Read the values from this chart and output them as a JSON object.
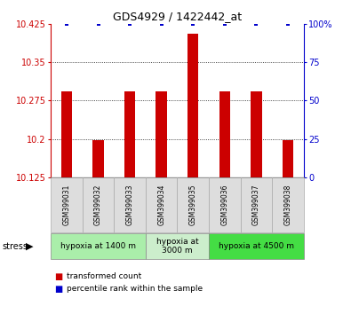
{
  "title": "GDS4929 / 1422442_at",
  "samples": [
    "GSM399031",
    "GSM399032",
    "GSM399033",
    "GSM399034",
    "GSM399035",
    "GSM399036",
    "GSM399037",
    "GSM399038"
  ],
  "bar_values": [
    10.293,
    10.198,
    10.293,
    10.293,
    10.405,
    10.293,
    10.293,
    10.198
  ],
  "percentile_values": [
    100,
    100,
    100,
    100,
    100,
    100,
    100,
    100
  ],
  "bar_base": 10.125,
  "ylim_left": [
    10.125,
    10.425
  ],
  "ylim_right": [
    0,
    100
  ],
  "yticks_left": [
    10.125,
    10.2,
    10.275,
    10.35,
    10.425
  ],
  "yticks_right": [
    0,
    25,
    50,
    75,
    100
  ],
  "ytick_labels_left": [
    "10.125",
    "10.2",
    "10.275",
    "10.35",
    "10.425"
  ],
  "ytick_labels_right": [
    "0",
    "25",
    "50",
    "75",
    "100%"
  ],
  "bar_color": "#cc0000",
  "dot_color": "#0000cc",
  "grid_color": "#111111",
  "axis_color_left": "#cc0000",
  "axis_color_right": "#0000cc",
  "stress_groups": [
    {
      "label": "hypoxia at 1400 m",
      "start": 0,
      "end": 3,
      "color": "#aaeeaa"
    },
    {
      "label": "hypoxia at\n3000 m",
      "start": 3,
      "end": 5,
      "color": "#cceecc"
    },
    {
      "label": "hypoxia at 4500 m",
      "start": 5,
      "end": 8,
      "color": "#44dd44"
    }
  ],
  "stress_label": "stress",
  "legend_bar_label": "transformed count",
  "legend_dot_label": "percentile rank within the sample",
  "bar_width": 0.35,
  "xlim": [
    -0.5,
    7.5
  ],
  "x_cell_width": 1.0,
  "sample_box_color": "#dddddd",
  "sample_box_edge": "#aaaaaa"
}
